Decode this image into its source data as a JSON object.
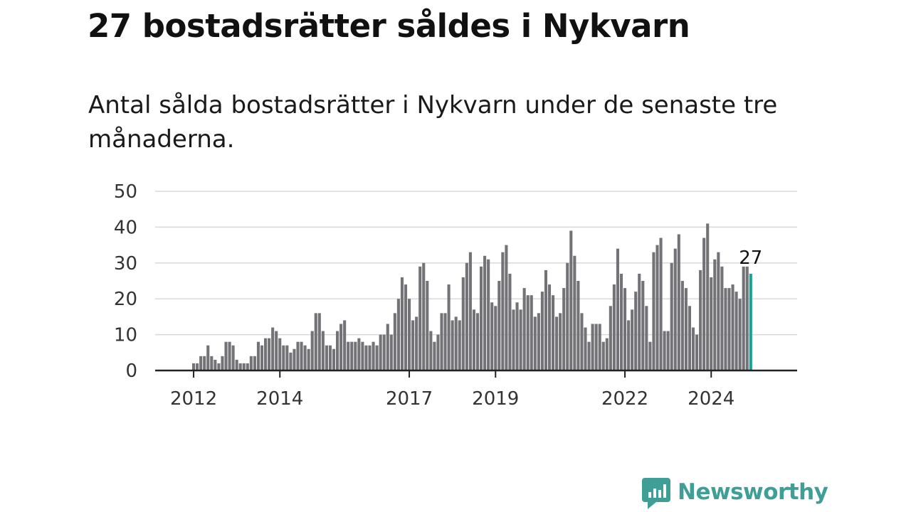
{
  "header": {
    "title": "27 bostadsrätter såldes i Nykvarn",
    "subtitle": "Antal sålda bostadsrätter i Nykvarn under de senaste tre månaderna."
  },
  "brand": {
    "name": "Newsworthy",
    "color": "#3f9e96"
  },
  "colors": {
    "bar": "#737276",
    "highlight": "#16a394",
    "grid": "#d9d9d9",
    "axis": "#222222"
  },
  "chart_data": {
    "type": "bar",
    "ylim": [
      0,
      50
    ],
    "y_ticks": [
      "0",
      "10",
      "20",
      "30",
      "40",
      "50"
    ],
    "x_tick_labels": [
      {
        "label": "2012",
        "index": 10
      },
      {
        "label": "2014",
        "index": 34
      },
      {
        "label": "2017",
        "index": 70
      },
      {
        "label": "2019",
        "index": 94
      },
      {
        "label": "2022",
        "index": 130
      },
      {
        "label": "2024",
        "index": 154
      }
    ],
    "grid": true,
    "highlight_label": "27",
    "values": [
      0,
      0,
      0,
      0,
      0,
      0,
      0,
      0,
      0,
      0,
      2,
      2,
      4,
      4,
      7,
      4,
      3,
      2,
      4,
      8,
      8,
      7,
      3,
      2,
      2,
      2,
      4,
      4,
      8,
      7,
      9,
      9,
      12,
      11,
      9,
      7,
      7,
      5,
      6,
      8,
      8,
      7,
      6,
      11,
      16,
      16,
      11,
      7,
      7,
      6,
      11,
      13,
      14,
      8,
      8,
      8,
      9,
      8,
      7,
      7,
      8,
      7,
      10,
      10,
      13,
      10,
      16,
      20,
      26,
      24,
      20,
      14,
      15,
      29,
      30,
      25,
      11,
      8,
      10,
      16,
      16,
      24,
      14,
      15,
      14,
      26,
      30,
      33,
      17,
      16,
      29,
      32,
      31,
      19,
      18,
      25,
      33,
      35,
      27,
      17,
      19,
      17,
      23,
      21,
      21,
      15,
      16,
      22,
      28,
      24,
      21,
      15,
      16,
      23,
      30,
      39,
      32,
      25,
      16,
      12,
      8,
      13,
      13,
      13,
      8,
      9,
      18,
      24,
      34,
      27,
      23,
      14,
      17,
      22,
      27,
      25,
      18,
      8,
      33,
      35,
      37,
      11,
      11,
      30,
      34,
      38,
      25,
      23,
      18,
      12,
      10,
      28,
      37,
      41,
      26,
      31,
      33,
      29,
      23,
      23,
      24,
      22,
      20,
      29,
      29,
      27
    ]
  }
}
